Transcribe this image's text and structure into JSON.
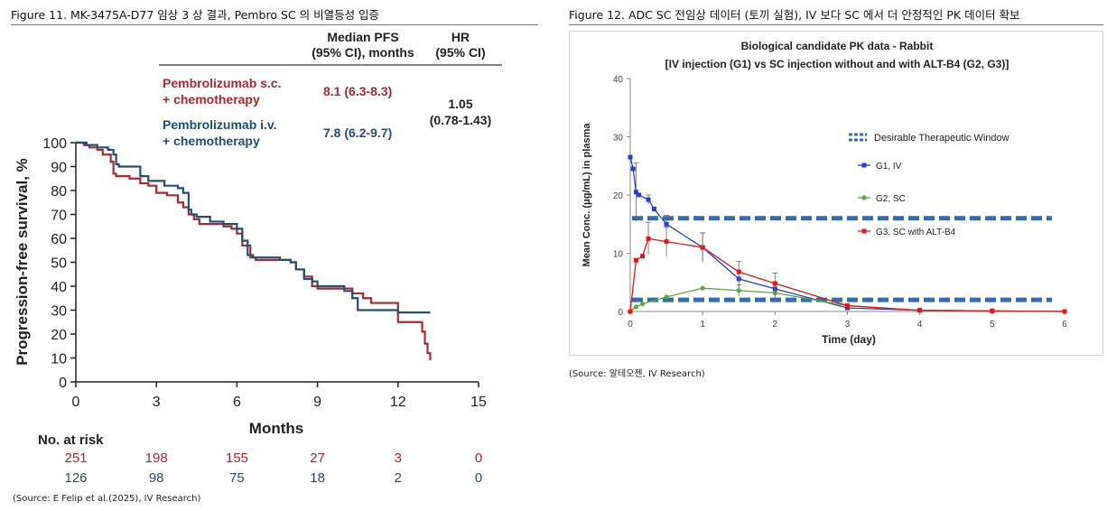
{
  "figure11": {
    "caption": "Figure 11. MK-3475A-D77 임상 3 상 결과, Pembro SC 의 비열등성 입증",
    "source": "(Source: E Felip et al.(2025), IV Research)",
    "table_header": {
      "pfs": "Median PFS",
      "pfs_ci": "(95% CI), months",
      "hr": "HR",
      "hr_ci": "(95% CI)"
    },
    "rows": [
      {
        "label1": "Pembrolizumab s.c.",
        "label2": "+ chemotherapy",
        "value": "8.1 (6.3-8.3)",
        "color": "#a8282d"
      },
      {
        "label1": "Pembrolizumab i.v.",
        "label2": "+ chemotherapy",
        "value": "7.8  (6.2-9.7)",
        "color": "#1f4e79"
      }
    ],
    "hr_value": "1.05",
    "hr_ci_value": "(0.78-1.43)",
    "risk_title": "No. at risk",
    "risk": [
      {
        "color": "#a8282d",
        "values": [
          "251",
          "198",
          "155",
          "27",
          "3",
          "0"
        ]
      },
      {
        "color": "#1f4e79",
        "values": [
          "126",
          "98",
          "75",
          "18",
          "2",
          "0"
        ]
      }
    ]
  },
  "figure12": {
    "caption": "Figure 12. ADC SC 전임상 데이터 (토끼 실험), IV 보다 SC 에서 더 안정적인 PK 데이터 확보",
    "source": "(Source: 알테오젠, IV Research)"
  },
  "chart_data": [
    {
      "type": "line",
      "xlabel": "Months",
      "ylabel": "Progression-free survival, %",
      "xlim": [
        0,
        15
      ],
      "ylim": [
        0,
        100
      ],
      "xticks": [
        0,
        3,
        6,
        9,
        12,
        15
      ],
      "yticks": [
        0,
        10,
        20,
        30,
        40,
        50,
        60,
        70,
        80,
        90,
        100
      ],
      "grid": false,
      "series": [
        {
          "color": "#a8282d",
          "x": [
            0,
            0.3,
            0.5,
            0.8,
            1.0,
            1.3,
            1.4,
            1.5,
            2.0,
            2.4,
            2.7,
            3.0,
            3.4,
            3.8,
            4.0,
            4.2,
            4.4,
            4.6,
            5.0,
            5.5,
            5.8,
            6.0,
            6.2,
            6.5,
            6.7,
            7.0,
            7.5,
            8.0,
            8.2,
            8.5,
            8.8,
            9.0,
            9.5,
            10.0,
            10.3,
            10.7,
            11.0,
            11.7,
            12.0,
            12.5,
            12.9,
            13.0,
            13.1,
            13.2
          ],
          "y": [
            100,
            99,
            98,
            97,
            95,
            92,
            87,
            86,
            85,
            83,
            82,
            79,
            78,
            75,
            73,
            70,
            68,
            66,
            66,
            65,
            64,
            62,
            57,
            52,
            51,
            51,
            51,
            50,
            47,
            44,
            40,
            39,
            39,
            39,
            37,
            35,
            33,
            33,
            25,
            25,
            21,
            16,
            12,
            9
          ]
        },
        {
          "color": "#1f4e79",
          "x": [
            0,
            0.4,
            0.8,
            1.2,
            1.4,
            1.5,
            1.6,
            2.0,
            2.4,
            2.7,
            3.0,
            3.3,
            3.8,
            4.0,
            4.2,
            4.3,
            4.5,
            5.0,
            5.5,
            6.0,
            6.2,
            6.4,
            6.6,
            7.0,
            7.6,
            8.0,
            8.2,
            8.5,
            8.8,
            9.0,
            9.5,
            10.0,
            10.3,
            10.5,
            11.0,
            11.5,
            12.0,
            12.5,
            13.0,
            13.2
          ],
          "y": [
            100,
            99,
            98,
            97,
            95,
            91,
            90,
            90,
            86,
            84,
            84,
            82,
            81,
            79,
            72,
            70,
            69,
            67,
            66,
            64,
            59,
            53,
            52,
            52,
            51,
            50,
            47,
            43,
            42,
            40,
            40,
            38,
            35,
            30,
            30,
            30,
            29,
            29,
            29,
            29
          ]
        }
      ]
    },
    {
      "type": "line",
      "title": "Biological candidate PK data - Rabbit",
      "subtitle": "[IV injection (G1) vs SC injection without and with ALT-B4 (G2, G3)]",
      "xlabel": "Time (day)",
      "ylabel": "Mean Conc. (μg/mL) in plasma",
      "xlim": [
        0,
        6
      ],
      "ylim": [
        0,
        40
      ],
      "xticks": [
        0,
        1,
        2,
        3,
        4,
        5,
        6
      ],
      "yticks": [
        0,
        10,
        20,
        30,
        40
      ],
      "grid": false,
      "legend": "right",
      "therapeutic_window": {
        "name": "Desirable Therapeutic Window",
        "lower": 2,
        "upper": 16,
        "color": "#2e6db4"
      },
      "series": [
        {
          "name": "G1, IV",
          "color": "#1f3fd0",
          "x": [
            0,
            0.04,
            0.08,
            0.12,
            0.25,
            0.33,
            0.5,
            1.0,
            1.5,
            2.0,
            3.0,
            4.0,
            5.0,
            6.0
          ],
          "y": [
            26.5,
            24.5,
            20.5,
            20.0,
            19.2,
            17.6,
            15.0,
            11.0,
            5.6,
            3.9,
            0.6,
            0.2,
            0.1,
            0
          ],
          "err": [
            0,
            0,
            5.0,
            0,
            0.8,
            0,
            1.5,
            2.5,
            1.5,
            1.2,
            0,
            0,
            0,
            0
          ]
        },
        {
          "name": "G2, SC",
          "color": "#5aaa3c",
          "x": [
            0,
            0.08,
            0.17,
            0.5,
            1.0,
            1.5,
            2.0,
            3.0,
            4.0,
            5.0,
            6.0
          ],
          "y": [
            0,
            0.8,
            1.3,
            2.5,
            4.0,
            3.6,
            3.2,
            1.0,
            0.2,
            0.1,
            0
          ],
          "err": [
            0,
            0,
            0,
            0,
            0,
            1.0,
            1.0,
            0,
            0,
            0,
            0
          ]
        },
        {
          "name": "G3, SC with ALT-B4",
          "color": "#e01818",
          "x": [
            0,
            0.08,
            0.17,
            0.25,
            0.5,
            1.0,
            1.5,
            2.0,
            3.0,
            4.0,
            5.0,
            6.0
          ],
          "y": [
            0,
            8.8,
            9.5,
            12.5,
            12.0,
            11.0,
            6.8,
            4.8,
            1.0,
            0.2,
            0.1,
            0
          ],
          "err": [
            0,
            0,
            0,
            2.8,
            2.5,
            2.5,
            1.8,
            1.8,
            0,
            0,
            0,
            0
          ]
        }
      ]
    }
  ]
}
